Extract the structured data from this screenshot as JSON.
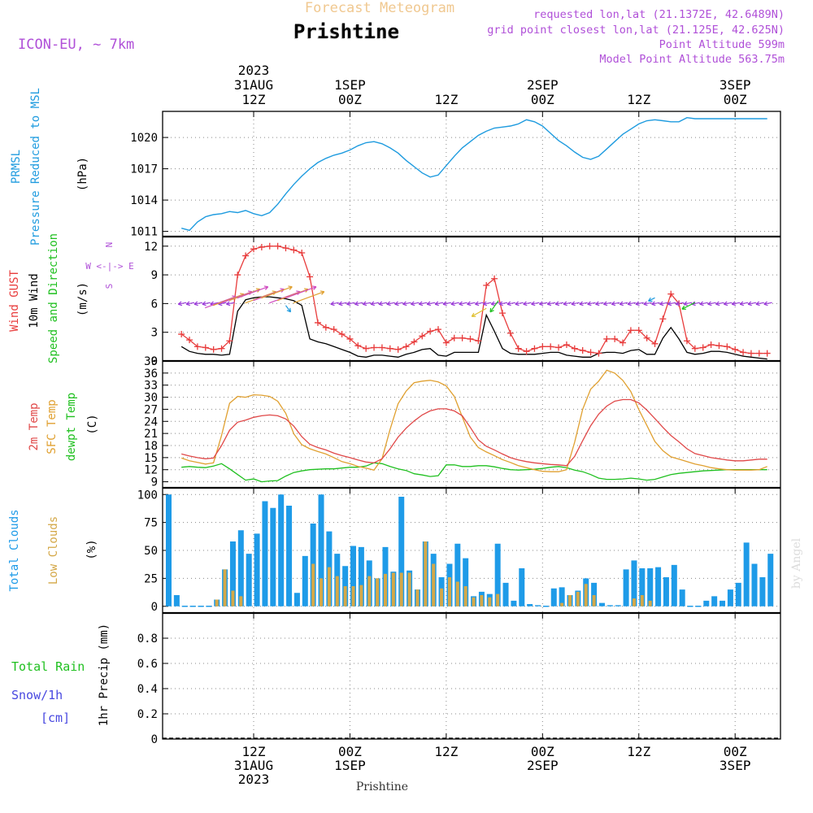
{
  "header": {
    "product": "Forecast Meteogram",
    "location": "Prishtine",
    "model": "ICON-EU, ~ 7km",
    "requested": "requested lon,lat (21.1372E, 42.6489N)",
    "grid_point": "grid point closest lon,lat (21.125E, 42.625N)",
    "point_altitude": "Point Altitude 599m",
    "model_altitude": "Model Point Altitude 563.75m",
    "credit": "by Angel",
    "footer_location": "Prishtine"
  },
  "time_axis": {
    "top_labels": [
      {
        "lines": [
          "2023",
          "31AUG",
          "12Z"
        ]
      },
      {
        "lines": [
          "1SEP",
          "00Z"
        ]
      },
      {
        "lines": [
          "12Z"
        ]
      },
      {
        "lines": [
          "2SEP",
          "00Z"
        ]
      },
      {
        "lines": [
          "12Z"
        ]
      },
      {
        "lines": [
          "3SEP",
          "00Z"
        ]
      }
    ],
    "bottom_labels": [
      {
        "lines": [
          "12Z",
          "31AUG",
          "2023"
        ]
      },
      {
        "lines": [
          "00Z",
          "1SEP"
        ]
      },
      {
        "lines": [
          "12Z"
        ]
      },
      {
        "lines": [
          "00Z",
          "2SEP"
        ]
      },
      {
        "lines": [
          "12Z"
        ]
      },
      {
        "lines": [
          "00Z",
          "3SEP"
        ]
      }
    ],
    "tick_hours": [
      0,
      12,
      24,
      36,
      48,
      60
    ]
  },
  "panels": {
    "pressure": {
      "label_lines": [
        "PRMSL",
        "Pressure Reduced to MSL"
      ],
      "unit": "(hPa)",
      "ticks": [
        "1011",
        "1014",
        "1017",
        "1020"
      ]
    },
    "wind": {
      "label_gust": "Wind GUST",
      "label_wind": "10m Wind",
      "label_dir": "Speed and Direction",
      "unit": "(m/s)",
      "compass_n": "N",
      "compass_we": "W <-|-> E",
      "compass_s": "S",
      "ticks": [
        "0",
        "3",
        "6",
        "9",
        "12"
      ]
    },
    "temperature": {
      "label_t2m": "2m Temp",
      "label_sfc": "SFC Temp",
      "label_dew": "dewpt Temp",
      "unit": "(C)",
      "ticks": [
        "9",
        "12",
        "15",
        "18",
        "21",
        "24",
        "27",
        "30",
        "33",
        "36",
        "39"
      ]
    },
    "clouds": {
      "label_total": "Total Clouds",
      "label_low": "Low Clouds",
      "unit": "(%)",
      "ticks": [
        "0",
        "25",
        "50",
        "75",
        "100"
      ]
    },
    "precip": {
      "label_rain": "Total  Rain",
      "label_snow": "Snow/1h",
      "label_snow_unit": "[cm]",
      "axis_label": "1hr Precip (mm)",
      "ticks": [
        "0",
        "0.2",
        "0.4",
        "0.6",
        "0.8"
      ]
    }
  },
  "colors": {
    "pressure": "#1e9bdf",
    "gust": "#e83c3c",
    "wind": "#000000",
    "t2m": "#e04848",
    "sfc": "#e0a030",
    "dew": "#20c020",
    "total_clouds": "#1e9be8",
    "low_clouds": "#d4a848",
    "rain": "#20c020",
    "snow": "#4848e0",
    "purple": "#b050d8",
    "header_orange": "#f0c890"
  },
  "chart_data": [
    {
      "type": "line",
      "title": "PRMSL Pressure Reduced to MSL",
      "ylabel": "(hPa)",
      "ylim": [
        1010.5,
        1022.5
      ],
      "x_hours": [
        -9,
        -8,
        -7,
        -6,
        -5,
        -4,
        -3,
        -2,
        -1,
        0,
        1,
        2,
        3,
        4,
        5,
        6,
        7,
        8,
        9,
        10,
        11,
        12,
        13,
        14,
        15,
        16,
        17,
        18,
        19,
        20,
        21,
        22,
        23,
        24,
        25,
        26,
        27,
        28,
        29,
        30,
        31,
        32,
        33,
        34,
        35,
        36,
        37,
        38,
        39,
        40,
        41,
        42,
        43,
        44,
        45,
        46,
        47,
        48,
        49,
        50,
        51,
        52,
        53,
        54,
        55,
        56,
        57,
        58,
        59,
        60,
        61,
        62,
        63,
        64
      ],
      "series": [
        {
          "values": [
            1011.3,
            1011.1,
            1011.9,
            1012.4,
            1012.6,
            1012.7,
            1012.9,
            1012.8,
            1013.0,
            1012.7,
            1012.5,
            1012.8,
            1013.6,
            1014.6,
            1015.5,
            1016.3,
            1017.0,
            1017.6,
            1018.0,
            1018.3,
            1018.5,
            1018.8,
            1019.2,
            1019.5,
            1019.6,
            1019.4,
            1019.0,
            1018.5,
            1017.8,
            1017.2,
            1016.6,
            1016.2,
            1016.4,
            1017.3,
            1018.2,
            1019.0,
            1019.6,
            1020.2,
            1020.6,
            1020.9,
            1021.0,
            1021.1,
            1021.3,
            1021.7,
            1021.5,
            1021.1,
            1020.4,
            1019.7,
            1019.2,
            1018.6,
            1018.1,
            1017.9,
            1018.2,
            1018.9,
            1019.6,
            1020.3,
            1020.8,
            1021.3,
            1021.6,
            1021.7,
            1021.6,
            1021.5,
            1021.5,
            1021.9,
            1021.8,
            1021.8,
            1021.8,
            1021.8,
            1021.8,
            1021.8,
            1021.8,
            1021.8,
            1021.8,
            1021.8
          ]
        }
      ]
    },
    {
      "type": "line",
      "title": "Wind GUST / 10m Wind Speed and Direction",
      "ylabel": "(m/s)",
      "ylim": [
        0,
        13
      ],
      "series": [
        {
          "name": "Wind GUST",
          "values": [
            2.8,
            2.2,
            1.5,
            1.4,
            1.2,
            1.3,
            2.1,
            9.0,
            11.0,
            11.7,
            11.9,
            12.0,
            12.0,
            11.8,
            11.6,
            11.3,
            8.8,
            4.0,
            3.5,
            3.3,
            2.8,
            2.3,
            1.6,
            1.3,
            1.4,
            1.4,
            1.3,
            1.2,
            1.5,
            2.0,
            2.6,
            3.1,
            3.3,
            1.9,
            2.4,
            2.4,
            2.3,
            2.1,
            7.9,
            8.6,
            5.0,
            2.9,
            1.3,
            1.0,
            1.3,
            1.5,
            1.5,
            1.4,
            1.7,
            1.3,
            1.1,
            0.9,
            0.8,
            2.3,
            2.3,
            1.9,
            3.2,
            3.2,
            2.4,
            1.8,
            4.4,
            7.0,
            6.0,
            2.1,
            1.3,
            1.4,
            1.7,
            1.6,
            1.5,
            1.2,
            0.9,
            0.8,
            0.8,
            0.8
          ]
        },
        {
          "name": "10m Wind",
          "values": [
            1.5,
            1.0,
            0.8,
            0.7,
            0.7,
            0.6,
            0.7,
            5.2,
            6.4,
            6.6,
            6.7,
            6.7,
            6.6,
            6.5,
            6.3,
            5.8,
            2.3,
            2.0,
            1.8,
            1.5,
            1.2,
            0.9,
            0.5,
            0.4,
            0.6,
            0.6,
            0.5,
            0.4,
            0.7,
            0.9,
            1.2,
            1.3,
            0.6,
            0.5,
            0.9,
            0.9,
            0.9,
            0.9,
            4.8,
            3.1,
            1.3,
            0.8,
            0.7,
            0.7,
            0.7,
            0.8,
            0.9,
            0.9,
            0.6,
            0.5,
            0.4,
            0.4,
            0.8,
            0.9,
            0.9,
            0.8,
            1.1,
            1.2,
            0.7,
            0.7,
            2.4,
            3.5,
            2.3,
            0.9,
            0.7,
            0.8,
            1.0,
            1.0,
            0.9,
            0.7,
            0.5,
            0.4,
            0.3,
            0.2
          ]
        }
      ]
    },
    {
      "type": "line",
      "title": "2m Temp / SFC Temp / dewpt Temp",
      "ylabel": "(C)",
      "ylim": [
        7.5,
        39
      ],
      "series": [
        {
          "name": "2m Temp",
          "values": [
            15.9,
            15.4,
            15.0,
            14.7,
            14.9,
            18.0,
            21.8,
            23.8,
            24.3,
            25.0,
            25.4,
            25.6,
            25.4,
            24.6,
            22.8,
            20.2,
            18.3,
            17.5,
            16.9,
            16.1,
            15.5,
            15.0,
            14.4,
            13.9,
            13.7,
            14.7,
            17.2,
            20.1,
            22.3,
            24.1,
            25.6,
            26.6,
            27.1,
            27.1,
            26.6,
            25.4,
            22.5,
            19.4,
            17.8,
            16.9,
            15.9,
            15.0,
            14.4,
            14.0,
            13.7,
            13.5,
            13.3,
            13.2,
            13.0,
            15.3,
            19.2,
            22.9,
            25.8,
            27.8,
            29.0,
            29.4,
            29.4,
            28.6,
            26.8,
            24.7,
            22.5,
            20.5,
            18.9,
            17.2,
            16.0,
            15.5,
            15.0,
            14.7,
            14.4,
            14.2,
            14.2,
            14.4,
            14.6,
            14.6
          ]
        },
        {
          "name": "SFC Temp",
          "values": [
            14.9,
            14.2,
            13.8,
            13.4,
            13.7,
            20.5,
            28.5,
            30.2,
            30.0,
            30.6,
            30.5,
            30.2,
            29.0,
            26.0,
            20.9,
            18.2,
            17.2,
            16.5,
            15.9,
            15.0,
            14.0,
            13.5,
            12.8,
            12.4,
            11.9,
            14.7,
            22.0,
            28.4,
            31.5,
            33.6,
            34.0,
            34.2,
            33.8,
            32.8,
            30.2,
            25.1,
            20.1,
            17.5,
            16.4,
            15.5,
            14.5,
            13.8,
            13.0,
            12.5,
            12.0,
            11.6,
            11.5,
            11.5,
            12.0,
            18.8,
            27.0,
            32.0,
            34.0,
            36.7,
            36.0,
            34.2,
            31.4,
            26.9,
            23.0,
            19.0,
            16.7,
            15.2,
            14.6,
            14.0,
            13.4,
            13.0,
            12.5,
            12.2,
            12.0,
            11.9,
            11.9,
            11.9,
            12.0,
            12.8
          ]
        },
        {
          "name": "dewpt Temp",
          "values": [
            12.6,
            12.8,
            12.6,
            12.5,
            12.9,
            13.5,
            12.2,
            10.8,
            9.4,
            9.7,
            9.0,
            9.2,
            9.3,
            10.4,
            11.3,
            11.7,
            12.0,
            12.1,
            12.2,
            12.2,
            12.4,
            12.6,
            12.6,
            12.9,
            13.7,
            13.5,
            12.8,
            12.2,
            11.8,
            11.0,
            10.7,
            10.3,
            10.5,
            13.2,
            13.2,
            12.8,
            12.8,
            13.0,
            13.0,
            12.7,
            12.3,
            12.0,
            11.9,
            12.0,
            12.1,
            12.3,
            12.6,
            12.8,
            12.5,
            11.9,
            11.5,
            10.8,
            9.9,
            9.6,
            9.6,
            9.7,
            9.9,
            9.7,
            9.4,
            9.6,
            10.2,
            10.8,
            11.1,
            11.3,
            11.5,
            11.7,
            11.8,
            11.9,
            12.0,
            12.0,
            12.0,
            12.0,
            12.0,
            12.0
          ]
        }
      ]
    },
    {
      "type": "bar",
      "title": "Total Clouds / Low Clouds",
      "ylabel": "(%)",
      "ylim": [
        -6,
        106
      ],
      "series": [
        {
          "name": "Total Clouds",
          "values": [
            100,
            10,
            0,
            0,
            0,
            0,
            6,
            33,
            58,
            68,
            47,
            65,
            94,
            88,
            100,
            90,
            12,
            45,
            74,
            100,
            67,
            47,
            36,
            54,
            53,
            41,
            25,
            53,
            31,
            98,
            32,
            15,
            58,
            47,
            26,
            38,
            56,
            43,
            9,
            13,
            11,
            56,
            21,
            5,
            34,
            2,
            1,
            0,
            16,
            17,
            10,
            14,
            25,
            21,
            3,
            1,
            1,
            33,
            41,
            34,
            34,
            35,
            26,
            37,
            15,
            0,
            0,
            5,
            9,
            5,
            15,
            21,
            57,
            38,
            26,
            47
          ]
        },
        {
          "name": "Low Clouds",
          "values": [
            0,
            0,
            0,
            0,
            0,
            0,
            6,
            33,
            14,
            9,
            0,
            0,
            0,
            0,
            0,
            0,
            0,
            0,
            38,
            25,
            35,
            27,
            18,
            18,
            19,
            27,
            25,
            29,
            30,
            30,
            30,
            15,
            58,
            38,
            16,
            26,
            22,
            18,
            8,
            10,
            8,
            11,
            0,
            0,
            0,
            0,
            0,
            0,
            0,
            3,
            10,
            13,
            20,
            10,
            0,
            0,
            0,
            0,
            7,
            10,
            5,
            0,
            0,
            0,
            0,
            0,
            0,
            0,
            0,
            0,
            0,
            0,
            0,
            0,
            0,
            0
          ]
        }
      ]
    },
    {
      "type": "bar",
      "title": "Total Rain / Snow/1h",
      "ylabel": "1hr Precip (mm)",
      "ylim": [
        0,
        1
      ],
      "series": [
        {
          "name": "Total Rain",
          "values": []
        },
        {
          "name": "Snow/1h",
          "values": []
        }
      ]
    }
  ]
}
